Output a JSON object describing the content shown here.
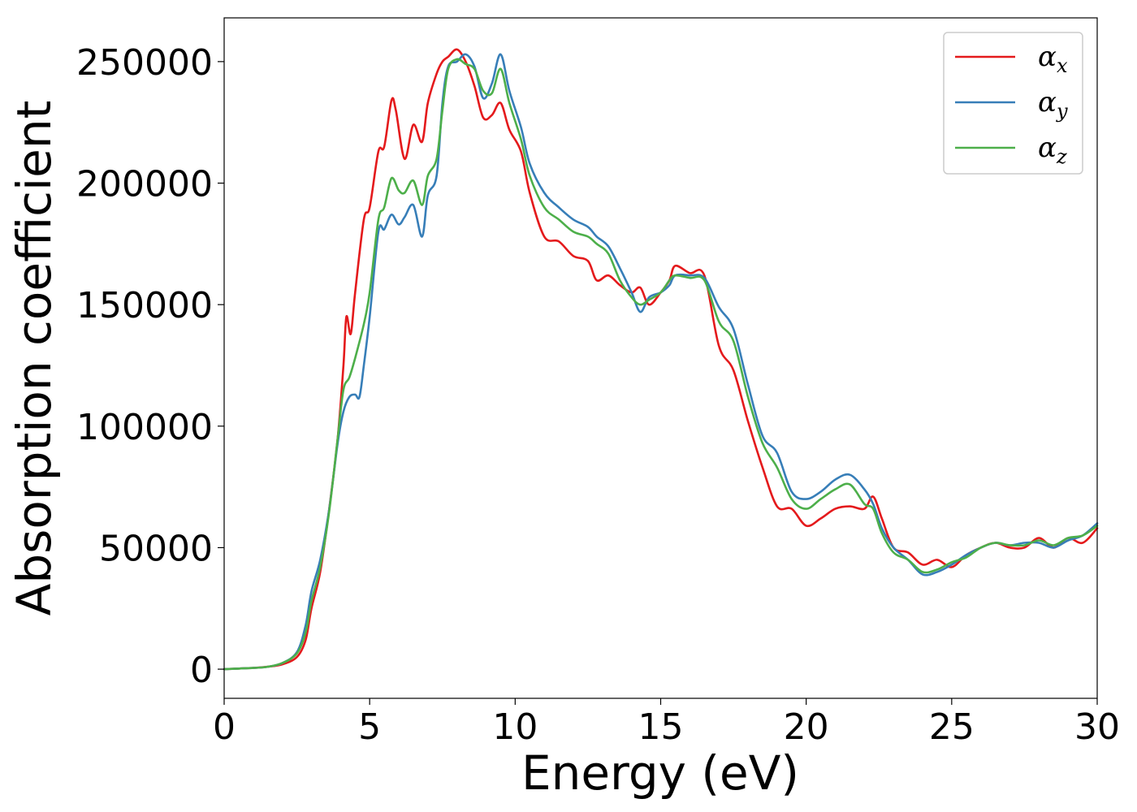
{
  "chart_data": {
    "type": "line",
    "title": "",
    "xlabel": "Energy (eV)",
    "ylabel": "Absorption coefficient",
    "xlim": [
      0,
      30
    ],
    "ylim": [
      -12000,
      268000
    ],
    "xticks": [
      0,
      5,
      10,
      15,
      20,
      25,
      30
    ],
    "yticks": [
      0,
      50000,
      100000,
      150000,
      200000,
      250000
    ],
    "grid": false,
    "legend_position": "top-right",
    "series": [
      {
        "name": "α",
        "subscript": "x",
        "color": "#e41a1c",
        "x": [
          0,
          1,
          1.5,
          2,
          2.5,
          2.8,
          3,
          3.3,
          3.6,
          3.9,
          4.1,
          4.2,
          4.35,
          4.5,
          4.8,
          5,
          5.3,
          5.5,
          5.75,
          5.9,
          6.2,
          6.5,
          6.8,
          7,
          7.3,
          7.5,
          7.7,
          8,
          8.3,
          8.6,
          8.9,
          9.2,
          9.5,
          9.8,
          10.2,
          10.5,
          11,
          11.5,
          12,
          12.5,
          12.8,
          13.2,
          13.6,
          14,
          14.3,
          14.6,
          15,
          15.3,
          15.5,
          16,
          16.5,
          17,
          17.5,
          18,
          18.5,
          19,
          19.5,
          20,
          20.5,
          21,
          21.5,
          22,
          22.3,
          22.6,
          23,
          23.5,
          24,
          24.5,
          25,
          25.5,
          26,
          26.5,
          27,
          27.5,
          28,
          28.5,
          29,
          29.5,
          30
        ],
        "values": [
          0,
          500,
          1000,
          2000,
          5000,
          12000,
          25000,
          40000,
          65000,
          95000,
          125000,
          145000,
          138000,
          155000,
          185000,
          190000,
          213000,
          215000,
          234000,
          230000,
          210000,
          224000,
          217000,
          233000,
          245000,
          250000,
          252000,
          255000,
          250000,
          240000,
          227000,
          228000,
          233000,
          222000,
          213000,
          196000,
          178000,
          176000,
          170000,
          168000,
          160000,
          162000,
          158000,
          155000,
          157000,
          150000,
          155000,
          160000,
          166000,
          163000,
          162000,
          133000,
          123000,
          102000,
          83000,
          67000,
          66000,
          59000,
          62000,
          66000,
          67000,
          66000,
          71000,
          62000,
          50000,
          48000,
          43000,
          45000,
          42000,
          47000,
          50000,
          52000,
          50000,
          50000,
          54000,
          50000,
          54000,
          52000,
          58000
        ]
      },
      {
        "name": "α",
        "subscript": "y",
        "color": "#377eb8",
        "x": [
          0,
          1,
          1.5,
          2,
          2.5,
          2.8,
          3,
          3.3,
          3.6,
          3.9,
          4.1,
          4.3,
          4.5,
          4.65,
          4.8,
          5,
          5.3,
          5.5,
          5.75,
          6,
          6.2,
          6.5,
          6.8,
          7,
          7.3,
          7.5,
          7.7,
          8,
          8.3,
          8.6,
          8.9,
          9.2,
          9.5,
          9.8,
          10.2,
          10.5,
          11,
          11.5,
          12,
          12.5,
          12.8,
          13.2,
          13.6,
          14,
          14.3,
          14.6,
          15,
          15.3,
          15.5,
          16,
          16.5,
          17,
          17.5,
          18,
          18.5,
          19,
          19.5,
          20,
          20.5,
          21,
          21.5,
          22,
          22.3,
          22.6,
          23,
          23.5,
          24,
          24.5,
          25,
          25.5,
          26,
          26.5,
          27,
          27.5,
          28,
          28.5,
          29,
          29.5,
          30
        ],
        "values": [
          0,
          500,
          1000,
          2500,
          7000,
          18000,
          32000,
          45000,
          65000,
          93000,
          106000,
          112000,
          113000,
          112000,
          125000,
          145000,
          180000,
          181000,
          187000,
          183000,
          186000,
          191000,
          178000,
          195000,
          203000,
          233000,
          248000,
          250000,
          253000,
          248000,
          235000,
          241000,
          253000,
          238000,
          223000,
          208000,
          196000,
          190000,
          185000,
          182000,
          178000,
          174000,
          165000,
          155000,
          147000,
          153000,
          155000,
          158000,
          162000,
          162000,
          161000,
          149000,
          140000,
          117000,
          96000,
          89000,
          73000,
          70000,
          73000,
          78000,
          80000,
          74000,
          68000,
          58000,
          50000,
          45000,
          39000,
          40000,
          43000,
          47000,
          50000,
          52000,
          51000,
          52000,
          52000,
          50000,
          53000,
          55000,
          60000
        ]
      },
      {
        "name": "α",
        "subscript": "z",
        "color": "#4daf4a",
        "x": [
          0,
          1,
          1.5,
          2,
          2.5,
          2.8,
          3,
          3.3,
          3.6,
          3.9,
          4.1,
          4.3,
          4.5,
          4.8,
          5,
          5.3,
          5.5,
          5.75,
          6,
          6.2,
          6.5,
          6.8,
          7,
          7.3,
          7.5,
          7.7,
          8,
          8.3,
          8.6,
          8.9,
          9.2,
          9.5,
          9.8,
          10.2,
          10.5,
          11,
          11.5,
          12,
          12.5,
          12.8,
          13.2,
          13.6,
          14,
          14.3,
          14.6,
          15,
          15.3,
          15.5,
          16,
          16.5,
          17,
          17.5,
          18,
          18.5,
          19,
          19.5,
          20,
          20.5,
          21,
          21.5,
          22,
          22.3,
          22.6,
          23,
          23.5,
          24,
          24.5,
          25,
          25.5,
          26,
          26.5,
          27,
          27.5,
          28,
          28.5,
          29,
          29.5,
          30
        ],
        "values": [
          0,
          500,
          1000,
          2500,
          6500,
          15000,
          28000,
          42000,
          64000,
          95000,
          115000,
          120000,
          128000,
          142000,
          155000,
          185000,
          190000,
          202000,
          197000,
          196000,
          201000,
          191000,
          203000,
          210000,
          230000,
          247000,
          251000,
          249000,
          247000,
          238000,
          237000,
          247000,
          233000,
          218000,
          203000,
          190000,
          185000,
          180000,
          178000,
          175000,
          171000,
          160000,
          153000,
          150000,
          152000,
          155000,
          160000,
          162000,
          161000,
          160000,
          143000,
          135000,
          112000,
          93000,
          83000,
          70000,
          66000,
          70000,
          74000,
          76000,
          68000,
          66000,
          56000,
          48000,
          45000,
          40000,
          41000,
          44000,
          46000,
          50000,
          52000,
          51000,
          51000,
          53000,
          51000,
          54000,
          55000,
          59000
        ]
      }
    ]
  }
}
